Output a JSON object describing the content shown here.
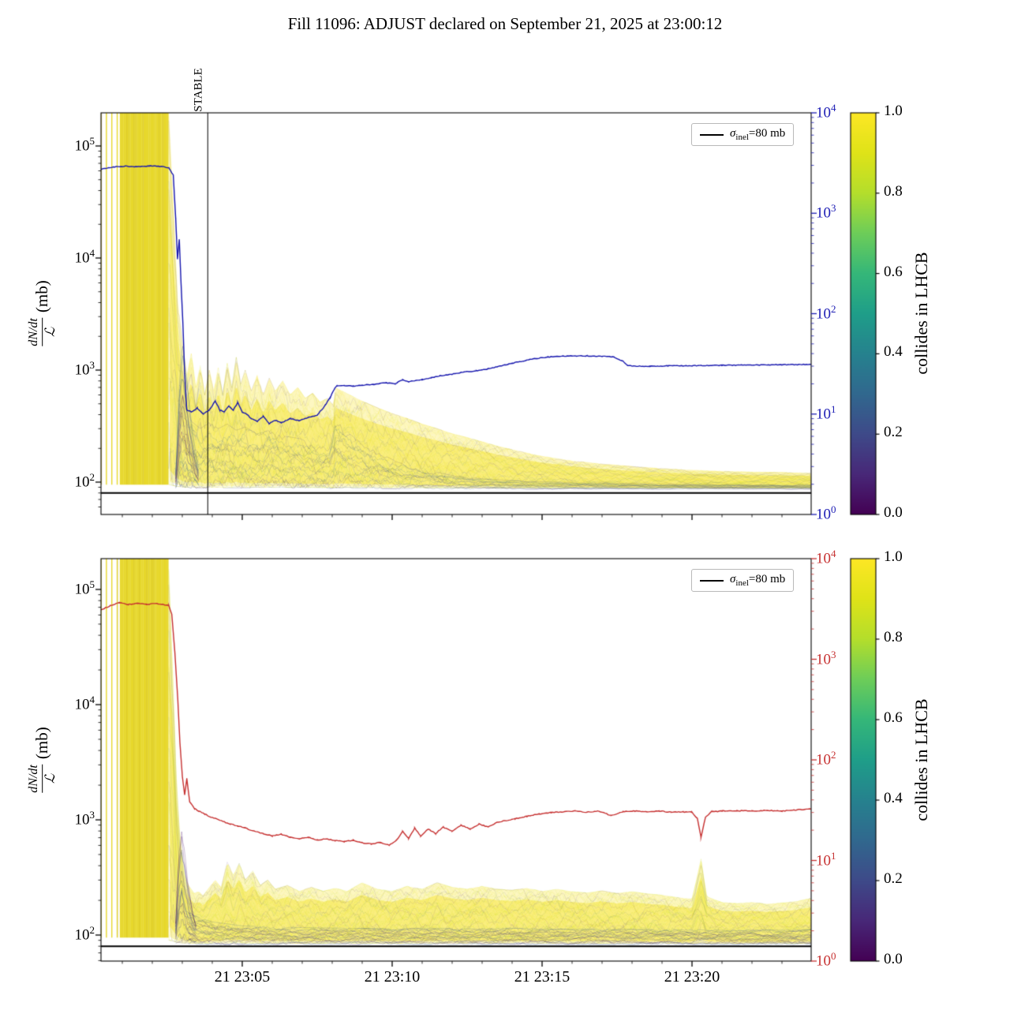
{
  "title": "Fill 11096: ADJUST declared on September 21, 2025 at 23:00:12",
  "ylabel": {
    "numerator": "dN/dt",
    "denominator": "ℒ",
    "suffix": "(mb)"
  },
  "legend": {
    "sigma": "σ",
    "sub": "inel",
    "rest": "=80 mb"
  },
  "x_axis": {
    "tick_minutes": [
      5,
      10,
      15,
      20
    ],
    "tick_labels": [
      "21 23:05",
      "21 23:10",
      "21 23:15",
      "21 23:20"
    ],
    "range_minutes": [
      0.29,
      23.97
    ]
  },
  "chart_data": [
    {
      "type": "line",
      "panel": "top",
      "left_axis": {
        "scale": "log",
        "unit": "mb",
        "tick_exponents": [
          5,
          4,
          3,
          2
        ],
        "range": [
          51,
          200000
        ]
      },
      "right_axis": {
        "scale": "log",
        "tick_exponents": [
          4,
          3,
          2,
          1,
          0
        ],
        "range": [
          1,
          10000
        ],
        "color": "#1c1cb4"
      },
      "colorbar": {
        "label": "collides in LHCB",
        "ticks": [
          "1.0",
          "0.8",
          "0.6",
          "0.4",
          "0.2",
          "0.0"
        ],
        "colormap": "viridis"
      },
      "legend_label": "σ_inel=80 mb",
      "reference_line_mb": 80,
      "stable_line": {
        "t_minutes": 3.85,
        "label": "STABLE"
      },
      "comb": {
        "t_end": 2.55,
        "v_low": 95,
        "v_high": 200000
      },
      "band": {
        "t": [
          2.55,
          2.7,
          2.85,
          3.0,
          3.15,
          3.3,
          3.45,
          3.6,
          3.75,
          3.9,
          4.05,
          4.2,
          4.35,
          4.5,
          4.65,
          4.8,
          4.95,
          5.1,
          5.3,
          5.5,
          5.7,
          5.9,
          6.1,
          6.35,
          6.6,
          6.85,
          7.1,
          7.35,
          7.6,
          7.85,
          8.05,
          8.1,
          8.4,
          8.8,
          9.2,
          9.6,
          10.0,
          10.5,
          11.0,
          11.5,
          12.0,
          12.5,
          13.0,
          13.5,
          14.0,
          15.0,
          16.0,
          17.0,
          18.0,
          19.0,
          20.0,
          21.0,
          22.0,
          23.0,
          24.0
        ],
        "upper": [
          200000,
          30000,
          4000,
          1800,
          900,
          1400,
          700,
          1100,
          600,
          1000,
          650,
          1050,
          600,
          1150,
          700,
          1300,
          750,
          1000,
          650,
          900,
          600,
          850,
          650,
          800,
          600,
          700,
          560,
          620,
          520,
          560,
          480,
          700,
          640,
          560,
          500,
          450,
          410,
          370,
          330,
          300,
          270,
          250,
          230,
          210,
          195,
          170,
          155,
          145,
          138,
          132,
          128,
          125,
          123,
          122,
          120
        ],
        "lower": 88
      },
      "dark_band": {
        "t": [
          2.9,
          3.1,
          3.3,
          3.6,
          3.9,
          4.2,
          4.5,
          4.8,
          5.1,
          5.5,
          5.9,
          6.3,
          6.7,
          7.1,
          7.5,
          7.9,
          8.1,
          8.5,
          9.0,
          9.6,
          10.2,
          11.0,
          12.0,
          13.0,
          14.0,
          16.0,
          18.0,
          20.0,
          22.0,
          24.0
        ],
        "upper": [
          800,
          500,
          350,
          300,
          340,
          300,
          330,
          290,
          310,
          270,
          290,
          260,
          250,
          240,
          230,
          215,
          380,
          280,
          220,
          180,
          150,
          130,
          115,
          107,
          103,
          99,
          97,
          96,
          95,
          94
        ],
        "lower": 86
      },
      "dark_peak": {
        "t": [
          2.78,
          2.9,
          3.0,
          3.12,
          3.25,
          3.4,
          3.55
        ],
        "upper": [
          120,
          700,
          1800,
          1000,
          450,
          220,
          130
        ],
        "lower": 86
      },
      "curve": {
        "color": "#1616ae",
        "t": [
          0.29,
          0.7,
          1.1,
          1.5,
          1.9,
          2.3,
          2.55,
          2.7,
          2.78,
          2.84,
          2.9,
          2.96,
          3.02,
          3.08,
          3.15,
          3.3,
          3.5,
          3.7,
          3.9,
          4.1,
          4.25,
          4.4,
          4.55,
          4.7,
          4.85,
          5.0,
          5.15,
          5.3,
          5.5,
          5.7,
          5.9,
          6.1,
          6.3,
          6.6,
          6.9,
          7.2,
          7.5,
          7.75,
          7.95,
          8.08,
          8.15,
          8.4,
          8.7,
          9.0,
          9.4,
          9.8,
          10.1,
          10.35,
          10.55,
          10.75,
          11.0,
          11.3,
          11.6,
          12.0,
          12.4,
          12.8,
          13.2,
          13.6,
          14.0,
          14.4,
          14.8,
          15.2,
          15.6,
          16.0,
          16.5,
          17.0,
          17.4,
          17.7,
          17.85,
          18.1,
          18.6,
          19.2,
          20.0,
          21.0,
          22.0,
          23.0,
          23.97
        ],
        "v": [
          2750,
          2900,
          2950,
          2900,
          2950,
          2920,
          2850,
          2400,
          900,
          350,
          550,
          200,
          80,
          25,
          11,
          10.5,
          11.5,
          10,
          11,
          13.5,
          11,
          10.5,
          12,
          11,
          13,
          10.5,
          10,
          9,
          8.5,
          9.5,
          8,
          8.7,
          8.2,
          9,
          8.6,
          9.2,
          9.8,
          12,
          15,
          18,
          19,
          19.3,
          19,
          19.4,
          19.8,
          20.5,
          20,
          22,
          21,
          21.5,
          22,
          23,
          24,
          25,
          26.2,
          27,
          28.2,
          30,
          32,
          34,
          35.8,
          37,
          37.6,
          38,
          38,
          37.6,
          37,
          33.5,
          30.5,
          30,
          30,
          30.2,
          30.3,
          30.6,
          30.8,
          31,
          31.2
        ]
      }
    },
    {
      "type": "line",
      "panel": "bottom",
      "left_axis": {
        "scale": "log",
        "unit": "mb",
        "tick_exponents": [
          5,
          4,
          3,
          2
        ],
        "range": [
          51,
          200000
        ]
      },
      "right_axis": {
        "scale": "log",
        "tick_exponents": [
          4,
          3,
          2,
          1,
          0
        ],
        "range": [
          1,
          10000
        ],
        "color": "#c63030"
      },
      "colorbar": {
        "label": "collides in LHCB",
        "ticks": [
          "1.0",
          "0.8",
          "0.6",
          "0.4",
          "0.2",
          "0.0"
        ],
        "colormap": "viridis"
      },
      "legend_label": "σ_inel=80 mb",
      "reference_line_mb": 80,
      "comb": {
        "t_end": 2.55,
        "v_low": 95,
        "v_high": 200000
      },
      "band": {
        "t": [
          2.55,
          2.7,
          2.8,
          2.9,
          3.0,
          3.1,
          3.25,
          3.4,
          3.55,
          3.7,
          3.9,
          4.1,
          4.3,
          4.5,
          4.7,
          4.9,
          5.1,
          5.35,
          5.6,
          5.85,
          6.1,
          6.5,
          6.9,
          7.3,
          7.7,
          8.1,
          8.5,
          9.0,
          9.5,
          10.0,
          10.5,
          11.0,
          11.5,
          12.0,
          12.5,
          13.0,
          13.5,
          14.0,
          14.5,
          15.0,
          15.5,
          16.0,
          16.5,
          17.0,
          17.5,
          18.0,
          18.5,
          19.0,
          19.5,
          20.0,
          20.15,
          20.3,
          20.5,
          21.0,
          21.5,
          22.0,
          22.5,
          23.0,
          23.5,
          24.0
        ],
        "upper": [
          150000,
          15000,
          2500,
          900,
          500,
          320,
          260,
          230,
          240,
          220,
          260,
          300,
          260,
          430,
          330,
          420,
          300,
          360,
          270,
          300,
          250,
          270,
          240,
          260,
          240,
          255,
          240,
          285,
          250,
          240,
          265,
          250,
          285,
          260,
          250,
          265,
          250,
          245,
          255,
          240,
          250,
          238,
          232,
          242,
          230,
          238,
          228,
          222,
          212,
          205,
          300,
          460,
          215,
          192,
          188,
          192,
          186,
          190,
          196,
          210
        ],
        "lower": 84
      },
      "dark_band": {
        "t": [
          3.2,
          3.6,
          4.0,
          4.5,
          5.0,
          6.0,
          7.0,
          8.0,
          9.0,
          10.0,
          11.0,
          12.0,
          13.0,
          14.0,
          15.0,
          16.0,
          17.0,
          18.0,
          19.0,
          20.0,
          21.0,
          22.0,
          23.0,
          24.0
        ],
        "upper": [
          160,
          140,
          130,
          125,
          120,
          118,
          116,
          115,
          114,
          113,
          115,
          114,
          113,
          115,
          113,
          112,
          113,
          112,
          111,
          112,
          110,
          111,
          110,
          112
        ],
        "lower": 82
      },
      "dark_peak": {
        "t": [
          2.78,
          2.88,
          2.98,
          3.08,
          3.2,
          3.35,
          3.5
        ],
        "upper": [
          130,
          500,
          950,
          600,
          300,
          170,
          120
        ],
        "lower": 84
      },
      "curve": {
        "color": "#c63030",
        "t": [
          0.29,
          0.6,
          0.9,
          1.2,
          1.5,
          1.8,
          2.1,
          2.4,
          2.55,
          2.65,
          2.75,
          2.85,
          2.92,
          3.0,
          3.08,
          3.15,
          3.25,
          3.4,
          3.55,
          3.75,
          3.95,
          4.15,
          4.35,
          4.6,
          4.85,
          5.1,
          5.4,
          5.7,
          6.0,
          6.3,
          6.6,
          6.9,
          7.2,
          7.5,
          7.8,
          8.1,
          8.4,
          8.7,
          9.0,
          9.3,
          9.6,
          9.9,
          10.15,
          10.35,
          10.55,
          10.75,
          10.95,
          11.2,
          11.45,
          11.7,
          12.0,
          12.3,
          12.6,
          12.9,
          13.2,
          13.5,
          13.8,
          14.1,
          14.5,
          14.9,
          15.3,
          15.7,
          16.1,
          16.5,
          16.9,
          17.3,
          17.7,
          18.1,
          18.5,
          18.9,
          19.3,
          19.7,
          20.0,
          20.18,
          20.3,
          20.45,
          20.65,
          21.0,
          21.5,
          22.0,
          22.5,
          23.0,
          23.5,
          23.97
        ],
        "v": [
          3100,
          3400,
          3650,
          3500,
          3600,
          3520,
          3580,
          3500,
          3400,
          2800,
          1200,
          400,
          150,
          70,
          45,
          65,
          38,
          33,
          31,
          29,
          27,
          26,
          24.5,
          23,
          22,
          21,
          19.5,
          18.5,
          17.5,
          18.2,
          17,
          16.5,
          17,
          16,
          16.4,
          15.8,
          15.4,
          15.9,
          15,
          14.6,
          15.1,
          14.2,
          16,
          19.5,
          16.5,
          21,
          17.5,
          20.5,
          18.5,
          21.5,
          19.5,
          22.5,
          20.5,
          23,
          21.5,
          24,
          25,
          26,
          27.5,
          29,
          30,
          30.5,
          31,
          30.2,
          31,
          28,
          30.5,
          31,
          30.3,
          31,
          30.2,
          30.4,
          30.2,
          26,
          17,
          27,
          30.5,
          31,
          31.3,
          31,
          31.5,
          31,
          31.8,
          32.5
        ]
      }
    }
  ]
}
